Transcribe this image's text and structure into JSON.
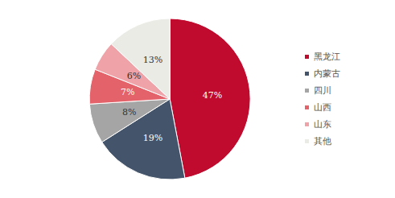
{
  "chart_data": {
    "type": "pie",
    "categories": [
      "黑龙江",
      "内蒙古",
      "四川",
      "山西",
      "山东",
      "其他"
    ],
    "values": [
      47,
      19,
      8,
      7,
      6,
      13
    ],
    "value_labels": [
      "47%",
      "19%",
      "8%",
      "7%",
      "6%",
      "13%"
    ],
    "colors": [
      "#c00a2e",
      "#44546a",
      "#a5a5a5",
      "#e4626a",
      "#efa3a8",
      "#ebebe6"
    ],
    "data_labels": true,
    "legend": "right"
  }
}
